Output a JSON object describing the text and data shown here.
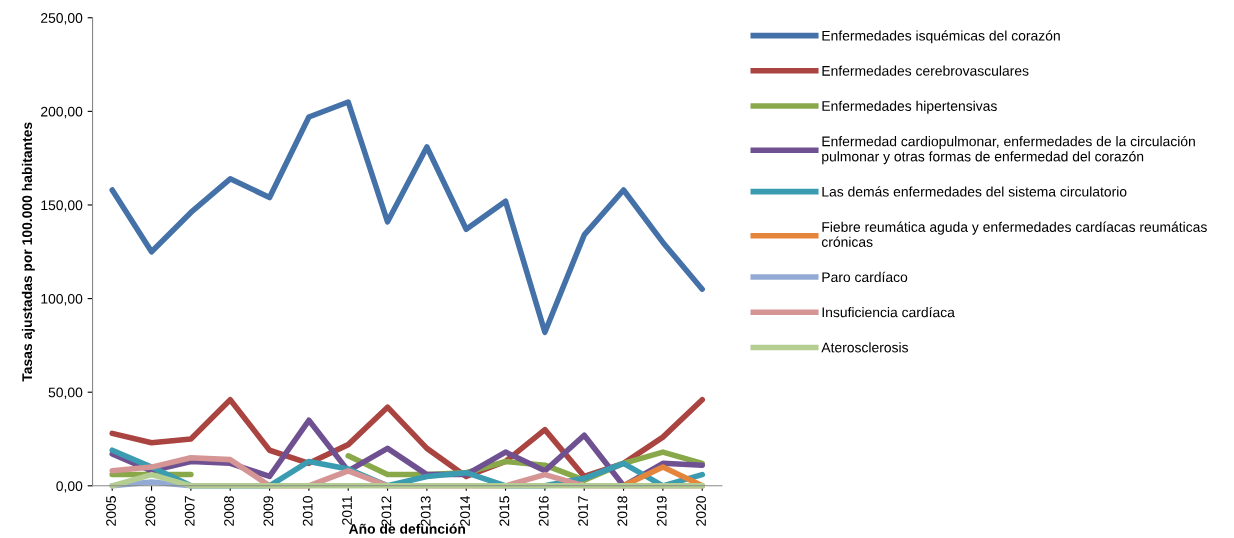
{
  "chart_data": {
    "type": "line",
    "xlabel": "Año de defunción",
    "ylabel": "Tasas ajustadas por 100.000 habitantes",
    "categories": [
      "2005",
      "2006",
      "2007",
      "2008",
      "2009",
      "2010",
      "2011",
      "2012",
      "2013",
      "2014",
      "2015",
      "2016",
      "2017",
      "2018",
      "2019",
      "2020"
    ],
    "ylim": [
      0,
      250
    ],
    "yticks": [
      {
        "value": 0,
        "label": "0,00"
      },
      {
        "value": 50,
        "label": "50,00"
      },
      {
        "value": 100,
        "label": "100,00"
      },
      {
        "value": 150,
        "label": "150,00"
      },
      {
        "value": 200,
        "label": "200,00"
      },
      {
        "value": 250,
        "label": "250,00"
      }
    ],
    "grid": false,
    "legend": "right",
    "marker": "none",
    "line_style": "solid",
    "series": [
      {
        "name": "Enfermedades isquémicas del corazón",
        "color": "#4472a8",
        "values": [
          158,
          125,
          146,
          164,
          154,
          197,
          205,
          141,
          181,
          137,
          152,
          82,
          134,
          158,
          130,
          105
        ]
      },
      {
        "name": "Enfermedades cerebrovasculares",
        "color": "#aa4441",
        "values": [
          28,
          23,
          25,
          46,
          19,
          12,
          22,
          42,
          20,
          5,
          13,
          30,
          5,
          12,
          26,
          46
        ]
      },
      {
        "name": "Enfermedades hipertensivas",
        "color": "#88a84a",
        "values": [
          6,
          6,
          6,
          null,
          null,
          null,
          16,
          6,
          6,
          7,
          13,
          11,
          3,
          12,
          18,
          12
        ]
      },
      {
        "name": "Enfermedad cardiopulmonar, enfermedades de la circulación pulmonar y otras formas de enfermedad del corazón",
        "color": "#6f5192",
        "values": [
          17,
          8,
          13,
          12,
          5,
          35,
          8,
          20,
          6,
          6,
          18,
          8,
          27,
          0,
          12,
          11
        ]
      },
      {
        "name": "Las demás enfermedades del sistema circulatorio",
        "color": "#3b9bb1",
        "values": [
          19,
          10,
          0,
          0,
          0,
          13,
          9,
          0,
          5,
          7,
          0,
          0,
          4,
          12,
          0,
          6
        ]
      },
      {
        "name": "Fiebre reumática aguda y enfermedades cardíacas reumáticas crónicas",
        "color": "#e4853b",
        "values": [
          null,
          null,
          null,
          null,
          null,
          null,
          null,
          null,
          null,
          null,
          null,
          null,
          null,
          0,
          10,
          0
        ]
      },
      {
        "name": "Paro cardíaco",
        "color": "#93aad4",
        "values": [
          0,
          2,
          0,
          null,
          null,
          null,
          null,
          null,
          null,
          null,
          null,
          null,
          null,
          null,
          null,
          null
        ]
      },
      {
        "name": "Insuficiencia cardíaca",
        "color": "#d49594",
        "values": [
          8,
          10,
          15,
          14,
          0,
          0,
          8,
          0,
          0,
          0,
          0,
          6,
          0,
          0,
          0,
          0
        ]
      },
      {
        "name": "Aterosclerosis",
        "color": "#b4ce92",
        "values": [
          0,
          6,
          0,
          0,
          0,
          0,
          0,
          0,
          0,
          0,
          0,
          0,
          0,
          0,
          0,
          0
        ]
      }
    ]
  }
}
